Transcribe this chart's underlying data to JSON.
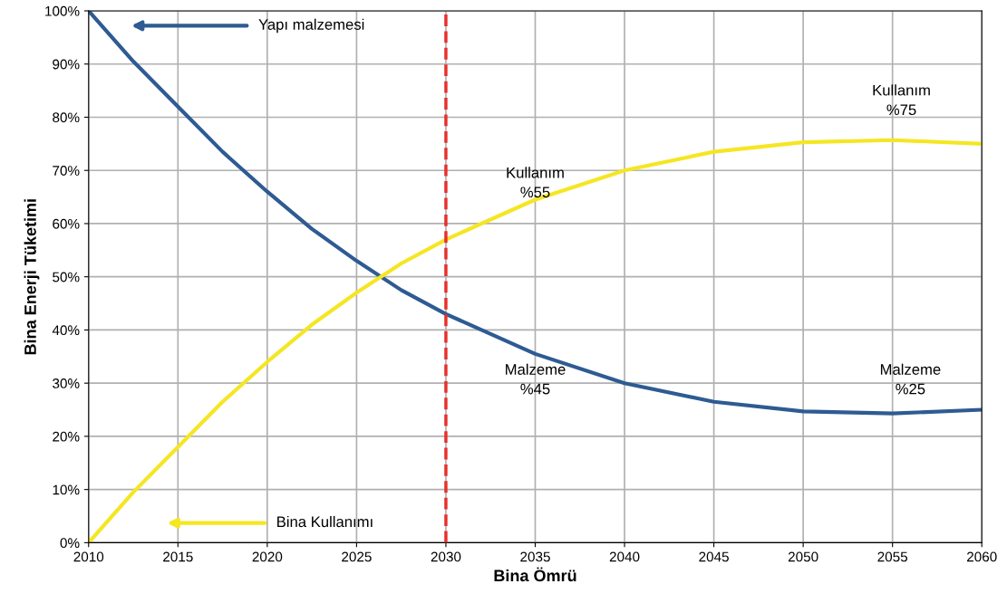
{
  "chart_data": {
    "type": "line",
    "xlabel": "Bina Ömrü",
    "ylabel": "Bina Enerji Tüketimi",
    "x": [
      2010,
      2012.5,
      2015,
      2017.5,
      2020,
      2022.5,
      2025,
      2027.5,
      2030,
      2035,
      2040,
      2045,
      2050,
      2055,
      2060
    ],
    "series": [
      {
        "color": "#2e5b92",
        "values": [
          100,
          90.5,
          82,
          73.5,
          66,
          59,
          53,
          47.5,
          43,
          35.5,
          30,
          26.5,
          24.7,
          24.3,
          25
        ]
      },
      {
        "color": "#f5e623",
        "values": [
          0,
          9.5,
          18,
          26.5,
          34,
          41,
          47,
          52.5,
          57,
          64.5,
          70,
          73.5,
          75.3,
          75.7,
          75
        ]
      }
    ],
    "xlim": [
      2010,
      2060
    ],
    "xticks": [
      2010,
      2015,
      2020,
      2025,
      2030,
      2035,
      2040,
      2045,
      2050,
      2055,
      2060
    ],
    "ylim": [
      0,
      100
    ],
    "yticks": [
      {
        "value": 0,
        "label": "0%"
      },
      {
        "value": 10,
        "label": "10%"
      },
      {
        "value": 20,
        "label": "20%"
      },
      {
        "value": 30,
        "label": "30%"
      },
      {
        "value": 40,
        "label": "40%"
      },
      {
        "value": 50,
        "label": "50%"
      },
      {
        "value": 60,
        "label": "60%"
      },
      {
        "value": 70,
        "label": "70%"
      },
      {
        "value": 80,
        "label": "80%"
      },
      {
        "value": 90,
        "label": "90%"
      },
      {
        "value": 100,
        "label": "100%"
      }
    ],
    "ref_lines": [
      {
        "axis": "x",
        "value": 2030,
        "color": "#e8302a",
        "line_style": "dashed"
      }
    ],
    "annotations": [
      "Yapı malzemesi",
      "Bina Kullanımı",
      "Kullanım\n%55",
      "Malzeme\n%45",
      "Kullanım\n%75",
      "Malzeme\n%25"
    ],
    "grid": true,
    "marker": "none",
    "line_style": "solid"
  }
}
